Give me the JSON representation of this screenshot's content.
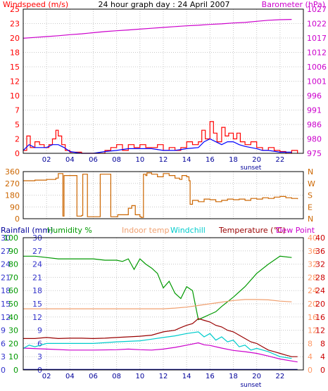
{
  "title": "24 hour graph day : 24 April 2007",
  "colors": {
    "wind": "#ff0000",
    "wind_avg": "#0000ff",
    "barometer": "#cc00cc",
    "direction": "#cc6600",
    "humidity": "#009900",
    "indoor_temp": "#f0a070",
    "windchill": "#00cccc",
    "temperature": "#990000",
    "dewpoint": "#cc00cc",
    "rainfall": "#000099",
    "hour_labels": "#000099",
    "sunset_label": "#000099",
    "rain_axis": "#3333cc",
    "hum_axis": "#009900",
    "temp_left_axis": "#3333cc",
    "indoor_axis": "#ff9966",
    "temp_right_axis": "#cc0000",
    "grid": "#c8c8c8"
  },
  "chart_data": [
    {
      "id": "wind_baro",
      "type": "line",
      "legend": {
        "left": "Windspeed (m/s)",
        "right": "Barometer (hPa)"
      },
      "x_ticks": [
        "02",
        "04",
        "06",
        "08",
        "10",
        "12",
        "14",
        "16",
        "18",
        "20",
        "22"
      ],
      "x_annotation": "sunset",
      "y_left": {
        "ticks": [
          "0",
          "2",
          "5",
          "7",
          "10",
          "12",
          "15",
          "18",
          "20",
          "23",
          "25"
        ],
        "ylim": [
          0,
          25
        ]
      },
      "y_right": {
        "ticks": [
          "975",
          "980",
          "986",
          "991",
          "996",
          "1001",
          "1006",
          "1012",
          "1017",
          "1022",
          "1027"
        ],
        "ylim": [
          975,
          1027
        ]
      },
      "series": [
        {
          "key": "barometer",
          "axis": "right",
          "x": [
            0,
            1,
            2,
            3,
            4,
            5,
            6,
            7,
            8,
            9,
            10,
            11,
            12,
            13,
            14,
            15,
            16,
            17,
            18,
            19,
            20,
            21,
            22,
            23
          ],
          "y": [
            1016.5,
            1016.8,
            1017.1,
            1017.4,
            1017.8,
            1018.1,
            1018.5,
            1018.9,
            1019.2,
            1019.5,
            1019.8,
            1020.1,
            1020.4,
            1020.7,
            1021.0,
            1021.2,
            1021.5,
            1021.7,
            1022.0,
            1022.2,
            1022.6,
            1023.0,
            1023.2,
            1023.3
          ]
        },
        {
          "key": "wind",
          "axis": "left",
          "x": [
            0,
            0.3,
            0.6,
            1,
            1.4,
            1.8,
            2.2,
            2.5,
            2.8,
            3,
            3.3,
            3.6,
            4,
            5,
            6,
            7,
            7.5,
            8,
            8.5,
            9,
            9.5,
            10,
            10.5,
            11,
            11.5,
            12,
            12.5,
            13,
            13.5,
            14,
            14.5,
            15,
            15.3,
            15.6,
            16,
            16.3,
            16.6,
            17,
            17.3,
            17.6,
            18,
            18.3,
            18.6,
            19,
            19.5,
            20,
            20.5,
            21,
            21.5,
            22,
            22.5,
            23,
            23.5
          ],
          "y": [
            0.5,
            3,
            1,
            2,
            1.5,
            1,
            1.5,
            2.5,
            4,
            3,
            1.5,
            0.5,
            0.2,
            0,
            0,
            0.5,
            1,
            1.5,
            0.5,
            1.5,
            1,
            1.5,
            1,
            1,
            1.5,
            0.5,
            1,
            0.5,
            1,
            2,
            1.5,
            2,
            4,
            2.5,
            5.5,
            3.5,
            2,
            4.5,
            3,
            3.5,
            2.5,
            3.5,
            2,
            1.5,
            2,
            1,
            0.5,
            1,
            0.5,
            0.3,
            0,
            0.5,
            0
          ]
        },
        {
          "key": "wind_avg",
          "axis": "left",
          "x": [
            0,
            0.5,
            1,
            1.5,
            2,
            2.5,
            3,
            3.5,
            4,
            5,
            6,
            7,
            8,
            9,
            10,
            11,
            12,
            13,
            14,
            15,
            15.5,
            16,
            16.5,
            17,
            17.5,
            18,
            18.5,
            19,
            19.5,
            20,
            20.5,
            21,
            22,
            23
          ],
          "y": [
            0.5,
            1.5,
            1,
            1,
            1,
            1.5,
            1.5,
            1,
            0.3,
            0,
            0,
            0.3,
            0.5,
            0.8,
            0.8,
            0.8,
            0.5,
            0.5,
            0.8,
            1,
            2,
            2.5,
            2,
            1.5,
            2,
            2,
            1.5,
            1.2,
            1,
            0.8,
            0.5,
            0.5,
            0.2,
            0.2
          ]
        }
      ]
    },
    {
      "id": "direction",
      "type": "line",
      "y_left": {
        "ticks": [
          "0",
          "90",
          "180",
          "270",
          "360"
        ],
        "ylim": [
          0,
          360
        ]
      },
      "y_right": {
        "ticks": [
          "N",
          "E",
          "S",
          "W",
          "N"
        ]
      },
      "series": [
        {
          "key": "direction",
          "axis": "left",
          "x": [
            0,
            0.5,
            1,
            2,
            2.8,
            3,
            3.4,
            3.5,
            4.5,
            4.6,
            5,
            5.1,
            5.4,
            5.5,
            6.5,
            6.6,
            7.4,
            7.5,
            8,
            8.1,
            9,
            9.3,
            9.6,
            10,
            10.1,
            10.3,
            10.5,
            10.6,
            11,
            11.5,
            12,
            12.5,
            13,
            13.4,
            13.6,
            14,
            14.2,
            14.3,
            14.5,
            15,
            15.5,
            16,
            16.5,
            17,
            17.5,
            18,
            18.5,
            19,
            19.5,
            20,
            20.5,
            21,
            21.5,
            22,
            22.5,
            23,
            23.5
          ],
          "y": [
            290,
            290,
            295,
            300,
            310,
            345,
            20,
            330,
            330,
            20,
            25,
            340,
            340,
            15,
            15,
            340,
            340,
            15,
            15,
            30,
            80,
            100,
            30,
            15,
            10,
            340,
            330,
            350,
            340,
            320,
            345,
            330,
            310,
            300,
            330,
            320,
            290,
            110,
            140,
            130,
            150,
            145,
            130,
            140,
            150,
            145,
            150,
            140,
            155,
            150,
            160,
            155,
            165,
            170,
            160,
            155,
            150
          ]
        }
      ]
    },
    {
      "id": "temp_hum",
      "type": "line",
      "legend": [
        "Rainfall (mm)",
        "Humidity %",
        "Indoor temp",
        "Windchill",
        "Temperature (°C)",
        "Dew Point"
      ],
      "x_ticks": [
        "02",
        "04",
        "06",
        "08",
        "10",
        "12",
        "14",
        "16",
        "18",
        "20",
        "22"
      ],
      "x_annotation": "sunset",
      "y_rain": {
        "ticks": [
          "0",
          "3",
          "6",
          "9",
          "12",
          "15",
          "18",
          "21",
          "24",
          "27",
          "30"
        ],
        "ylim": [
          0,
          30
        ]
      },
      "y_hum": {
        "ticks": [
          "0",
          "10",
          "20",
          "30",
          "40",
          "50",
          "60",
          "70",
          "80",
          "90",
          "100"
        ],
        "ylim": [
          0,
          100
        ]
      },
      "y_temp_left": {
        "ticks": [
          "0",
          "3",
          "6",
          "9",
          "12",
          "15",
          "18",
          "21",
          "24",
          "27",
          "30"
        ]
      },
      "y_indoor": {
        "ticks": [
          "0",
          "4",
          "8",
          "12",
          "16",
          "20",
          "24",
          "28",
          "32",
          "36",
          "40"
        ],
        "ylim": [
          0,
          40
        ]
      },
      "y_temp_right": {
        "ticks": [
          "0",
          "4",
          "8",
          "12",
          "16",
          "20",
          "24",
          "28",
          "32",
          "36",
          "40"
        ],
        "ylim": [
          0,
          40
        ]
      },
      "series": [
        {
          "key": "humidity",
          "axis": "hum",
          "x": [
            0,
            1,
            2,
            3,
            4,
            5,
            6,
            7,
            8,
            8.5,
            9,
            9.5,
            10,
            10.5,
            11,
            11.5,
            12,
            12.5,
            13,
            13.5,
            14,
            14.5,
            15,
            15.5,
            16,
            16.5,
            17,
            18,
            19,
            20,
            21,
            22,
            23
          ],
          "y": [
            86,
            86,
            85,
            84,
            84,
            84,
            84,
            83,
            83,
            82,
            84,
            76,
            84,
            80,
            77,
            73,
            62,
            67,
            58,
            54,
            63,
            60,
            38,
            40,
            42,
            44,
            48,
            55,
            63,
            73,
            80,
            86,
            85
          ]
        },
        {
          "key": "indoor_temp",
          "axis": "indoor",
          "x": [
            0,
            2,
            4,
            6,
            8,
            10,
            12,
            13,
            14,
            15,
            16,
            17,
            18,
            19,
            20,
            21,
            22,
            23
          ],
          "y": [
            18.5,
            18.5,
            18.5,
            18.5,
            18.5,
            18.5,
            18.5,
            18.7,
            19.0,
            19.5,
            20.0,
            20.5,
            21.0,
            21.3,
            21.3,
            21.2,
            20.8,
            20.6
          ]
        },
        {
          "key": "windchill",
          "axis": "temp",
          "x": [
            0,
            0.5,
            1,
            2,
            4,
            6,
            8,
            10,
            11,
            12,
            13,
            14,
            15,
            15.5,
            16,
            16.5,
            17,
            17.5,
            18,
            18.5,
            19,
            19.5,
            20,
            21,
            22,
            23
          ],
          "y": [
            6.5,
            7.5,
            7,
            8,
            8,
            8,
            8.5,
            8.8,
            9.3,
            9.8,
            10.3,
            11,
            11.5,
            10,
            11,
            9,
            10,
            8.5,
            9,
            7,
            7.5,
            6,
            6.5,
            5.5,
            4,
            3.5
          ]
        },
        {
          "key": "temperature",
          "axis": "temp",
          "x": [
            0,
            1,
            2,
            3,
            4,
            5,
            6,
            7,
            8,
            9,
            10,
            11,
            12,
            13,
            13.5,
            14,
            14.5,
            15,
            15.5,
            16,
            16.5,
            17,
            17.5,
            18,
            18.5,
            19,
            19.5,
            20,
            20.5,
            21,
            21.5,
            22,
            22.5,
            23,
            23.5
          ],
          "y": [
            9.5,
            9.5,
            9.8,
            9.5,
            9.6,
            9.6,
            9.5,
            9.6,
            9.8,
            10,
            10.2,
            10.5,
            11.5,
            12,
            12.8,
            13.5,
            14,
            15.5,
            15,
            14.5,
            13.5,
            13,
            12,
            11.5,
            10.5,
            9.5,
            8.5,
            8,
            7,
            6,
            5.5,
            5,
            4.5,
            4,
            4
          ]
        },
        {
          "key": "dewpoint",
          "axis": "temp",
          "x": [
            0,
            2,
            4,
            6,
            8,
            9,
            10,
            11,
            12,
            13,
            14,
            15,
            15.5,
            16,
            17,
            18,
            19,
            20,
            21,
            22,
            23,
            23.5
          ],
          "y": [
            6.6,
            6.3,
            6.0,
            6.0,
            6.1,
            6.3,
            6.1,
            6.0,
            6.3,
            6.8,
            7.5,
            8.2,
            7.6,
            7.4,
            6.6,
            5.9,
            5.5,
            5.0,
            4.2,
            3.3,
            2.7,
            2.4
          ]
        },
        {
          "key": "rainfall",
          "axis": "rain",
          "x": [
            0,
            23.5
          ],
          "y": [
            0.1,
            0.1
          ]
        }
      ]
    }
  ]
}
